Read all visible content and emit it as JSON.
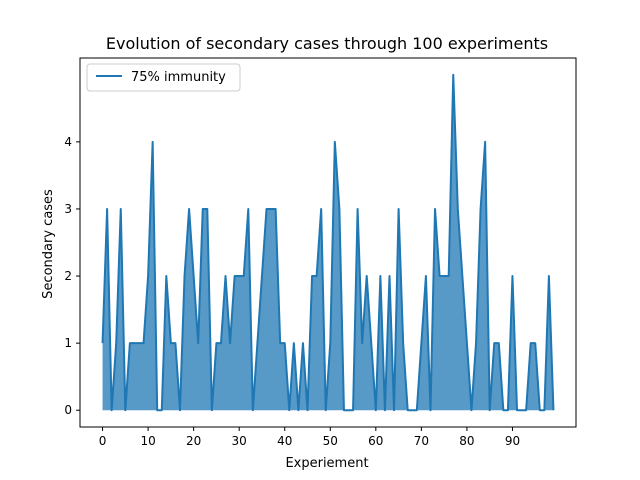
{
  "chart_data": {
    "type": "area",
    "title": "Evolution of secondary cases through 100 experiments",
    "xlabel": "Experiement",
    "ylabel": "Secondary cases",
    "xlim": [
      -4.95,
      103.95
    ],
    "ylim": [
      -0.25,
      5.25
    ],
    "xticks": [
      0,
      10,
      20,
      30,
      40,
      50,
      60,
      70,
      80,
      90
    ],
    "yticks": [
      0,
      1,
      2,
      3,
      4
    ],
    "grid": false,
    "legend_position": "top-left",
    "series": [
      {
        "name": "75% immunity",
        "color": "#1f77b4",
        "fill_color": "#1f77b4",
        "x": [
          0,
          1,
          2,
          3,
          4,
          5,
          6,
          7,
          8,
          9,
          10,
          11,
          12,
          13,
          14,
          15,
          16,
          17,
          18,
          19,
          20,
          21,
          22,
          23,
          24,
          25,
          26,
          27,
          28,
          29,
          30,
          31,
          32,
          33,
          34,
          35,
          36,
          37,
          38,
          39,
          40,
          41,
          42,
          43,
          44,
          45,
          46,
          47,
          48,
          49,
          50,
          51,
          52,
          53,
          54,
          55,
          56,
          57,
          58,
          59,
          60,
          61,
          62,
          63,
          64,
          65,
          66,
          67,
          68,
          69,
          70,
          71,
          72,
          73,
          74,
          75,
          76,
          77,
          78,
          79,
          80,
          81,
          82,
          83,
          84,
          85,
          86,
          87,
          88,
          89,
          90,
          91,
          92,
          93,
          94,
          95,
          96,
          97,
          98,
          99
        ],
        "values": [
          1,
          3,
          0,
          1,
          3,
          0,
          1,
          1,
          1,
          1,
          2,
          4,
          0,
          0,
          2,
          1,
          1,
          0,
          2,
          3,
          2,
          1,
          3,
          3,
          0,
          1,
          1,
          2,
          1,
          2,
          2,
          2,
          3,
          0,
          1,
          2,
          3,
          3,
          3,
          1,
          1,
          0,
          1,
          0,
          1,
          0,
          2,
          2,
          3,
          0,
          1,
          4,
          3,
          0,
          0,
          0,
          3,
          1,
          2,
          1,
          0,
          2,
          0,
          2,
          0,
          3,
          1,
          0,
          0,
          0,
          1,
          2,
          0,
          3,
          2,
          2,
          2,
          5,
          3,
          2,
          1,
          0,
          1,
          3,
          4,
          0,
          1,
          1,
          0,
          0,
          2,
          0,
          0,
          0,
          1,
          1,
          0,
          0,
          2,
          0
        ]
      }
    ]
  }
}
